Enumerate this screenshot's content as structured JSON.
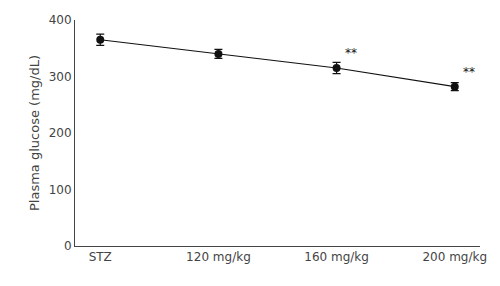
{
  "chart_data": {
    "type": "line",
    "categories": [
      "STZ",
      "120 mg/kg",
      "160 mg/kg",
      "200 mg/kg"
    ],
    "values": [
      365,
      340,
      315,
      282
    ],
    "errors": [
      10,
      8,
      10,
      7
    ],
    "color": "#111111",
    "marker": "circle",
    "ylabel": "Plasma glucose (mg/dL)",
    "ylim": [
      0,
      400
    ],
    "yticks": [
      0,
      100,
      200,
      300,
      400
    ],
    "grid": false,
    "annotations": [
      {
        "category": "160 mg/kg",
        "text": "**"
      },
      {
        "category": "200 mg/kg",
        "text": "**"
      }
    ]
  }
}
